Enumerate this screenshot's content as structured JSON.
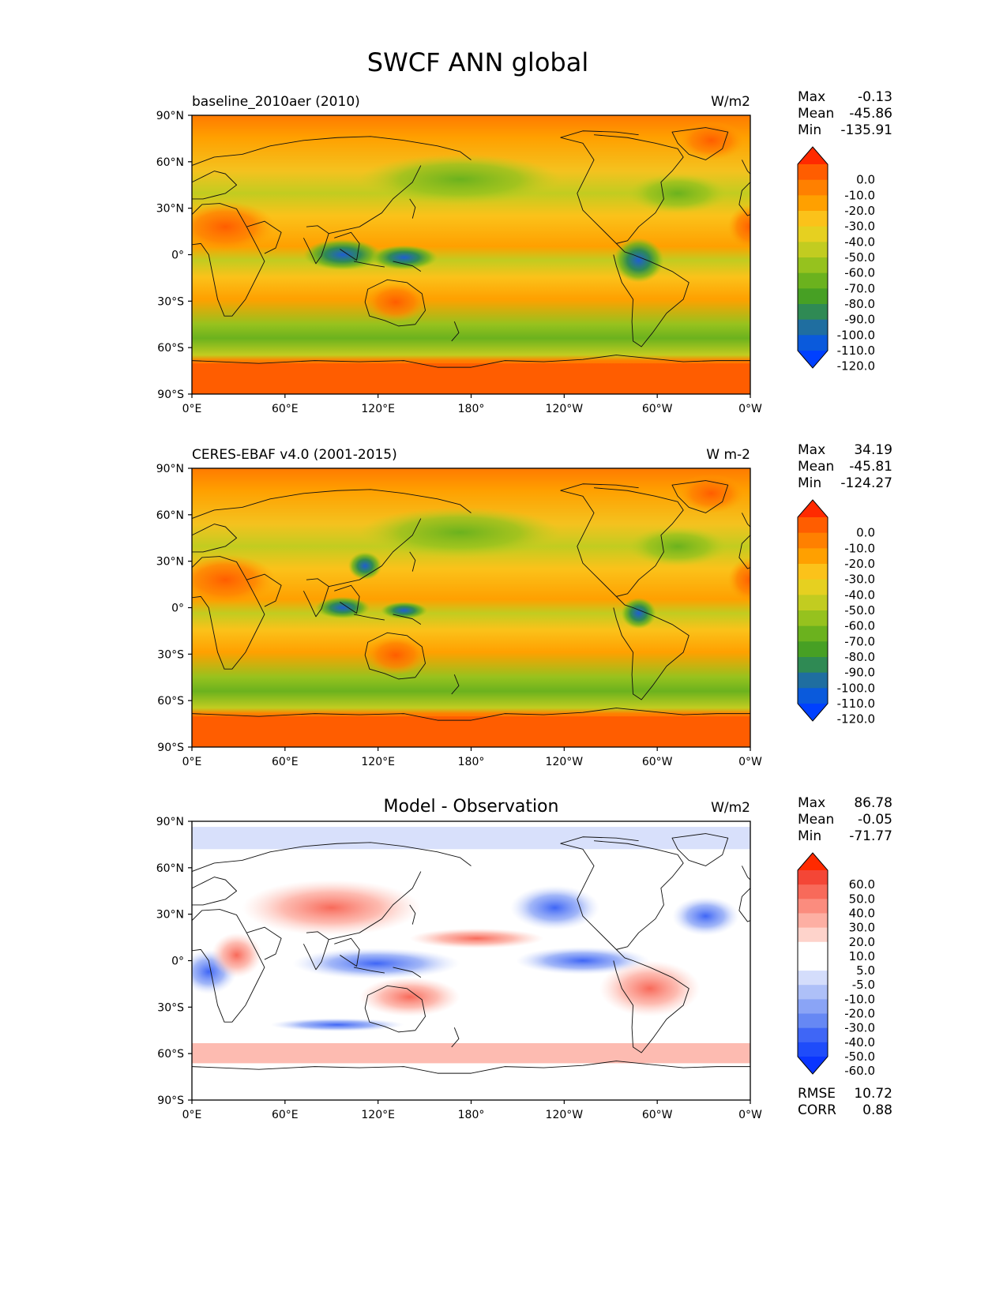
{
  "figure": {
    "title": "SWCF ANN global"
  },
  "axes": {
    "lat_ticks": [
      "90°N",
      "60°N",
      "30°N",
      "0°",
      "30°S",
      "60°S",
      "90°S"
    ],
    "lon_ticks": [
      "0°E",
      "60°E",
      "120°E",
      "180°",
      "120°W",
      "60°W",
      "0°W"
    ],
    "lat_range": [
      -90,
      90
    ],
    "lon_range": [
      0,
      360
    ],
    "projection": "PlateCarree (0–360)"
  },
  "panels": [
    {
      "title": "baseline_2010aer (2010)",
      "units": "W/m2",
      "stats": {
        "max_label": "Max",
        "max": "-0.13",
        "mean_label": "Mean",
        "mean": "-45.86",
        "min_label": "Min",
        "min": "-135.91"
      },
      "colorbar": {
        "labels": [
          "0.0",
          "-10.0",
          "-20.0",
          "-30.0",
          "-40.0",
          "-50.0",
          "-60.0",
          "-70.0",
          "-80.0",
          "-90.0",
          "-100.0",
          "-110.0",
          "-120.0"
        ],
        "colors": [
          "#ff2a00",
          "#ff5d00",
          "#ff8000",
          "#ffa000",
          "#fbc21a",
          "#e6d020",
          "#c2cc20",
          "#96c21e",
          "#6bb21e",
          "#47a024",
          "#2f8a54",
          "#1f6ea0",
          "#0a5adc",
          "#0040ff"
        ]
      }
    },
    {
      "title": "CERES-EBAF v4.0 (2001-2015)",
      "units": "W m-2",
      "stats": {
        "max_label": "Max",
        "max": "34.19",
        "mean_label": "Mean",
        "mean": "-45.81",
        "min_label": "Min",
        "min": "-124.27"
      },
      "colorbar": {
        "labels": [
          "0.0",
          "-10.0",
          "-20.0",
          "-30.0",
          "-40.0",
          "-50.0",
          "-60.0",
          "-70.0",
          "-80.0",
          "-90.0",
          "-100.0",
          "-110.0",
          "-120.0"
        ],
        "colors": [
          "#ff2a00",
          "#ff5d00",
          "#ff8000",
          "#ffa000",
          "#fbc21a",
          "#e6d020",
          "#c2cc20",
          "#96c21e",
          "#6bb21e",
          "#47a024",
          "#2f8a54",
          "#1f6ea0",
          "#0a5adc",
          "#0040ff"
        ]
      }
    },
    {
      "title": "Model - Observation",
      "units": "W/m2",
      "stats": {
        "max_label": "Max",
        "max": "86.78",
        "mean_label": "Mean",
        "mean": "-0.05",
        "min_label": "Min",
        "min": "-71.77"
      },
      "colorbar": {
        "labels": [
          "60.0",
          "50.0",
          "40.0",
          "30.0",
          "20.0",
          "10.0",
          "5.0",
          "-5.0",
          "-10.0",
          "-20.0",
          "-30.0",
          "-40.0",
          "-50.0",
          "-60.0"
        ],
        "colors": [
          "#ff2a00",
          "#f44636",
          "#f86a5a",
          "#fb8c7e",
          "#fdafa3",
          "#fed3cb",
          "#ffffff",
          "#ffffff",
          "#d4ddfb",
          "#aec0f8",
          "#8aa4f6",
          "#6688f4",
          "#3f66f6",
          "#1f4cfa",
          "#0a35ff"
        ]
      },
      "extra_stats": {
        "rmse_label": "RMSE",
        "rmse": "10.72",
        "corr_label": "CORR",
        "corr": "0.88"
      }
    }
  ]
}
